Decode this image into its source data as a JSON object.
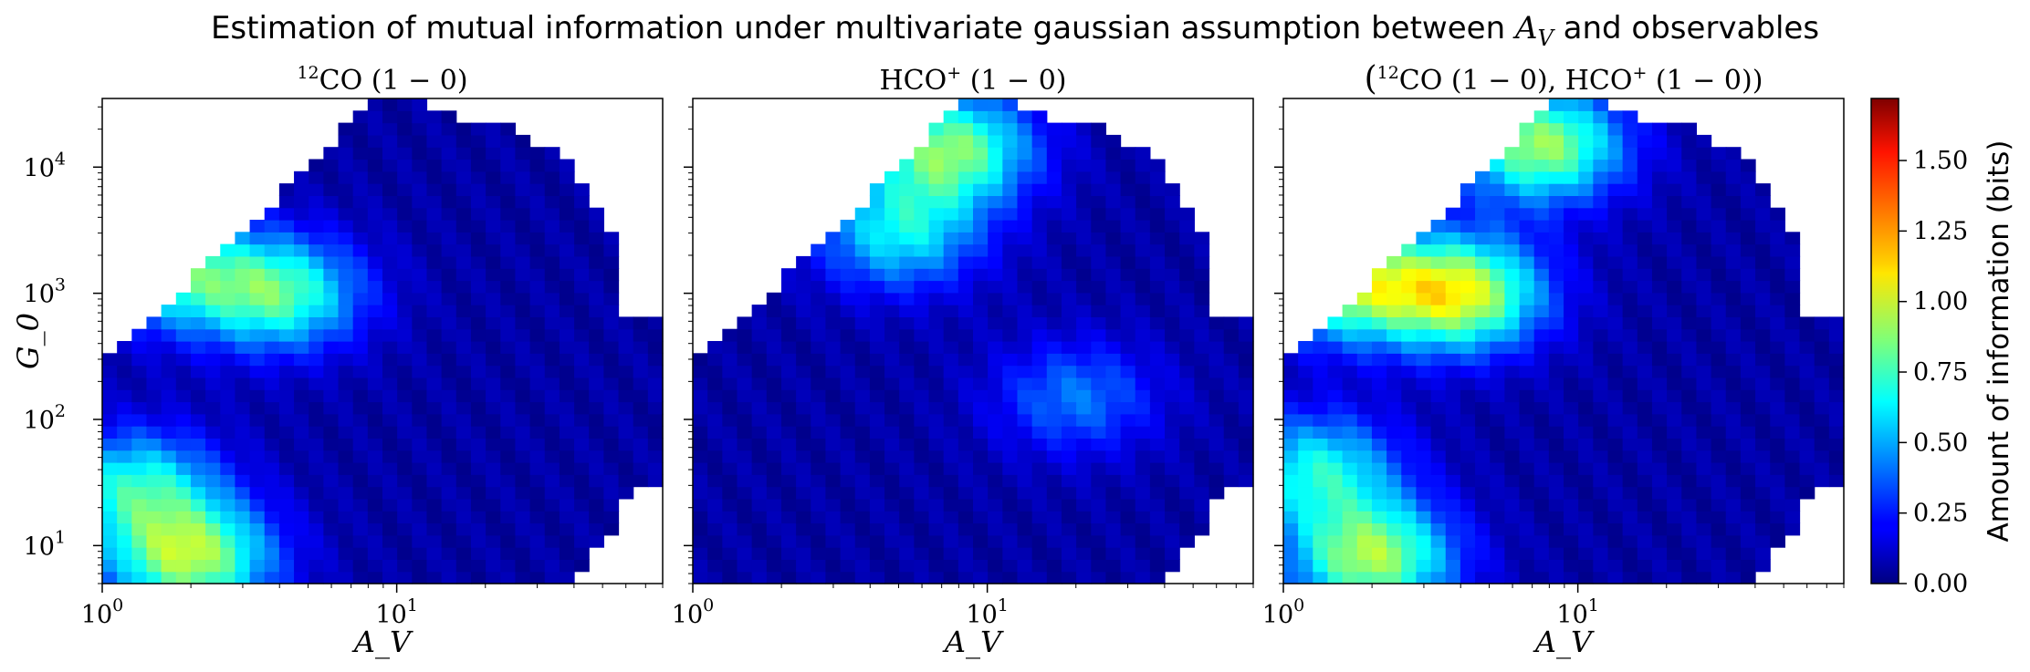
{
  "figure_title": "Estimation of mutual information under multivariate gaussian assumption between A_V and observables",
  "figure_title_parts": {
    "lead": "Estimation of mutual information under multivariate gaussian assumption between ",
    "av": "A",
    "av_sub": "V",
    "tail": " and observables"
  },
  "colorbar": {
    "label": "Amount of information (bits)",
    "range": [
      0.0,
      1.72
    ],
    "ticks": [
      "0.00",
      "0.25",
      "0.50",
      "0.75",
      "1.00",
      "1.25",
      "1.50"
    ],
    "tick_values": [
      0.0,
      0.25,
      0.5,
      0.75,
      1.0,
      1.25,
      1.5
    ],
    "colormap": "jet"
  },
  "chart_data": [
    {
      "type": "heatmap",
      "title": "12CO (1 − 0)",
      "title_parts": {
        "sup": "12",
        "main": "CO",
        "rest": " (1 − 0)"
      },
      "xlabel": "A_V",
      "ylabel": "G_0",
      "xscale": "log",
      "yscale": "log",
      "xlim": [
        1,
        80
      ],
      "ylim": [
        5,
        35000
      ],
      "xticks": [
        "10^0",
        "10^1"
      ],
      "yticks": [
        "10^1",
        "10^2",
        "10^3",
        "10^4"
      ],
      "peaks": [
        {
          "av": 2.0,
          "g0": 8,
          "value": 0.85
        },
        {
          "av": 1.3,
          "g0": 30,
          "value": 0.6
        },
        {
          "av": 4.0,
          "g0": 1000,
          "value": 0.7
        },
        {
          "av": 1.7,
          "g0": 1500,
          "value": 0.6
        }
      ]
    },
    {
      "type": "heatmap",
      "title": "HCO+ (1 − 0)",
      "title_parts": {
        "main": "HCO",
        "sup": "+",
        "rest": " (1 − 0)"
      },
      "xlabel": "A_V",
      "ylabel": "",
      "xscale": "log",
      "yscale": "log",
      "xlim": [
        1,
        80
      ],
      "ylim": [
        5,
        35000
      ],
      "xticks": [
        "10^0",
        "10^1"
      ],
      "yticks": [],
      "peaks": [
        {
          "av": 7.5,
          "g0": 14000,
          "value": 0.8
        },
        {
          "av": 5.0,
          "g0": 3000,
          "value": 0.55
        },
        {
          "av": 20,
          "g0": 150,
          "value": 0.35
        }
      ]
    },
    {
      "type": "heatmap",
      "title": "(12CO (1 − 0), HCO+ (1 − 0))",
      "title_parts": {
        "open": "(",
        "sup1": "12",
        "main1": "CO (1 − 0), HCO",
        "sup2": "+",
        "rest": " (1 − 0))"
      },
      "xlabel": "A_V",
      "ylabel": "",
      "xscale": "log",
      "yscale": "log",
      "xlim": [
        1,
        80
      ],
      "ylim": [
        5,
        35000
      ],
      "xticks": [
        "10^0",
        "10^1"
      ],
      "yticks": [],
      "peaks": [
        {
          "av": 2.0,
          "g0": 8,
          "value": 0.85
        },
        {
          "av": 4.0,
          "g0": 1000,
          "value": 0.95
        },
        {
          "av": 1.6,
          "g0": 1200,
          "value": 0.8
        },
        {
          "av": 7.5,
          "g0": 15000,
          "value": 0.85
        },
        {
          "av": 1.3,
          "g0": 40,
          "value": 0.6
        }
      ]
    }
  ]
}
